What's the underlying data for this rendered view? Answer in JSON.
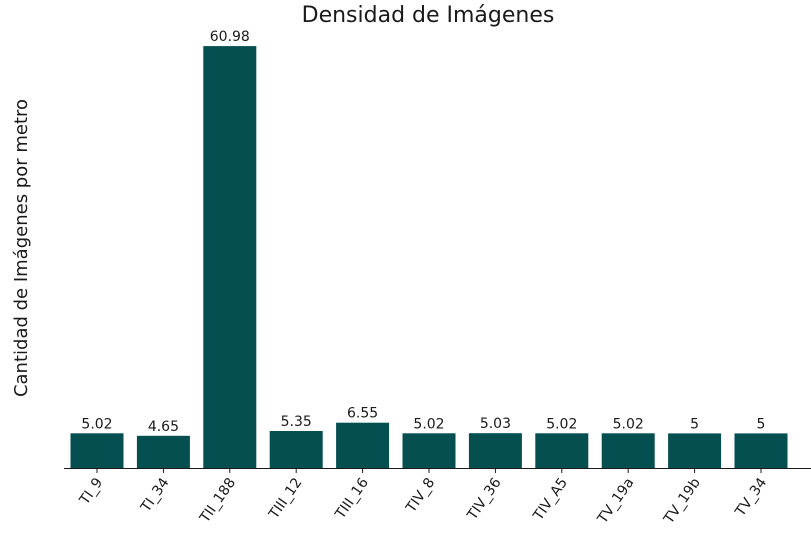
{
  "chart_data": {
    "type": "bar",
    "title": "Densidad de Imágenes",
    "xlabel": "",
    "ylabel": "Cantidad de Imágenes por metro",
    "categories": [
      "TI_9",
      "TI_34",
      "TII_188",
      "TIII_12",
      "TIII_16",
      "TIV_8",
      "TIV_36",
      "TIV_A5",
      "TV_19a",
      "TV_19b",
      "TV_34"
    ],
    "values": [
      5.02,
      4.65,
      60.98,
      5.35,
      6.55,
      5.02,
      5.03,
      5.02,
      5.02,
      5,
      5
    ],
    "value_labels": [
      "5.02",
      "4.65",
      "60.98",
      "5.35",
      "6.55",
      "5.02",
      "5.03",
      "5.02",
      "5.02",
      "5",
      "5"
    ],
    "ylim": [
      0,
      61
    ],
    "grid": false,
    "legend": "none",
    "bar_color": "#054f50"
  }
}
